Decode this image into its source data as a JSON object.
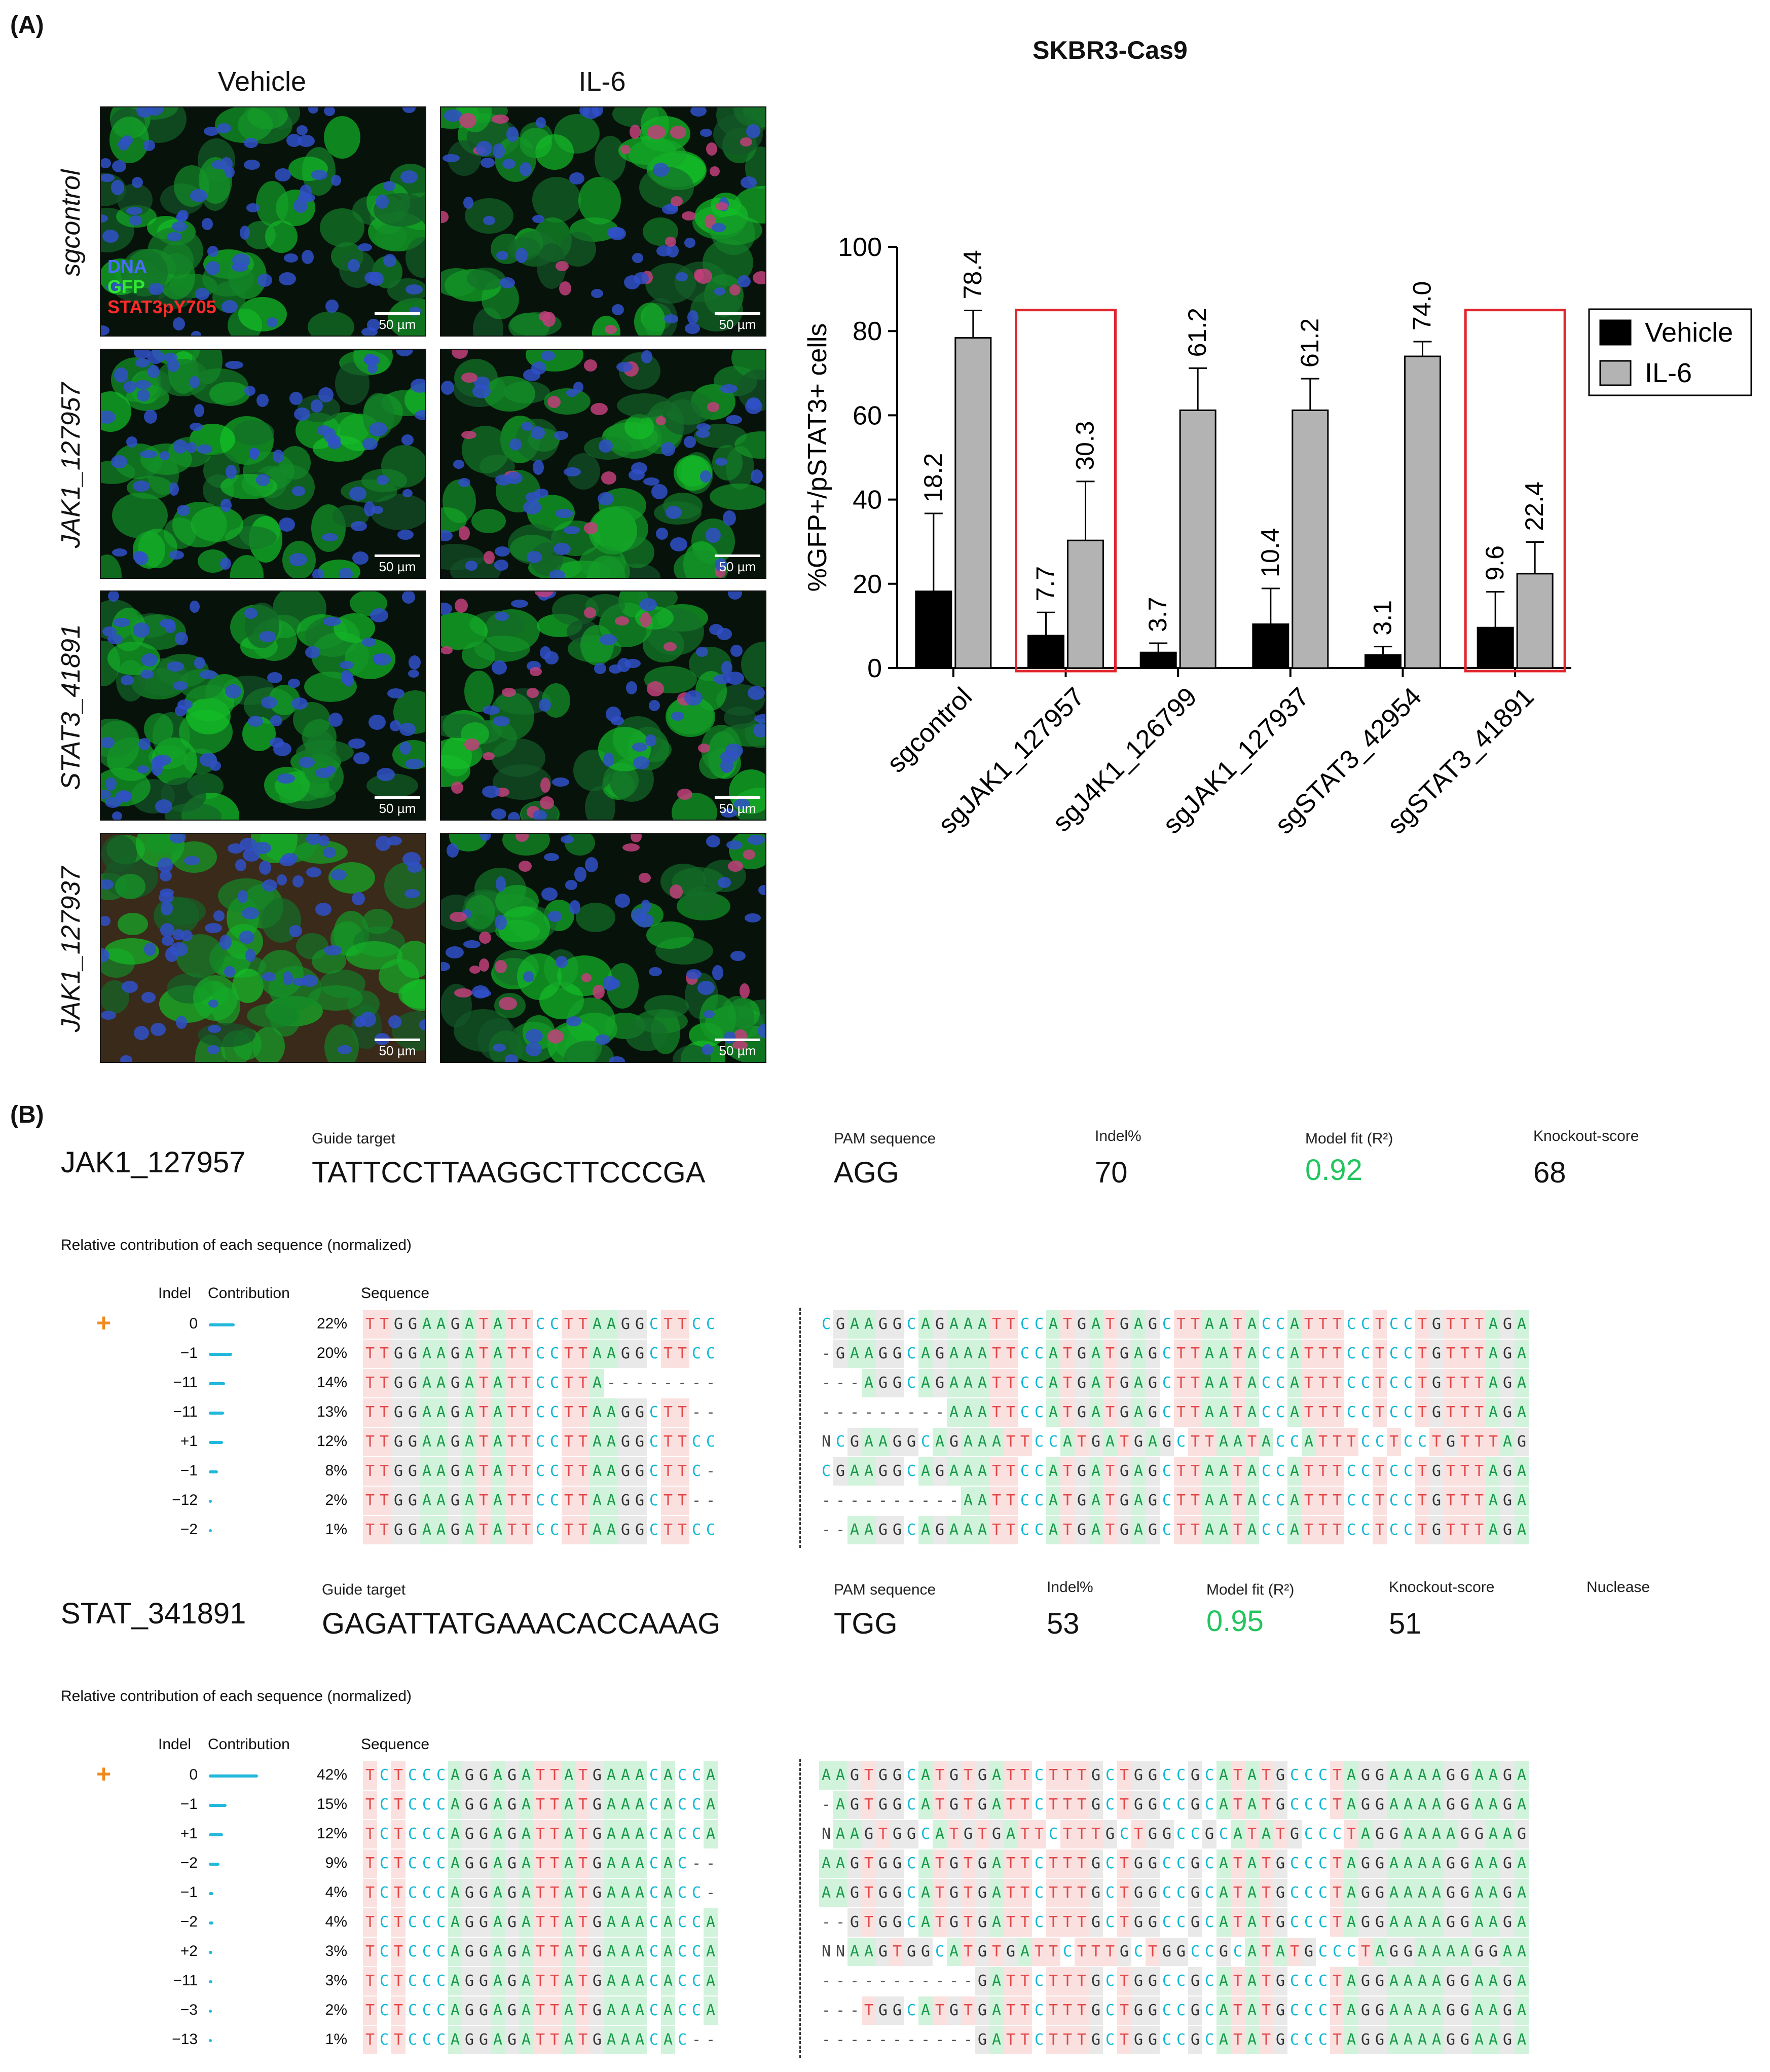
{
  "panel_a": {
    "label": "(A)",
    "col_headers": [
      "Vehicle",
      "IL-6"
    ],
    "row_labels": [
      "sgcontrol",
      "JAK1_127957",
      "STAT3_41891",
      "JAK1_127937"
    ],
    "legend": {
      "dna": "DNA",
      "gfp": "GFP",
      "stat": "STAT3pY705"
    },
    "scale_label": "50 µm"
  },
  "chart_data": {
    "type": "bar",
    "title": "SKBR3-Cas9",
    "ylabel": "%GFP+/pSTAT3+ cells",
    "xlabel": "",
    "ylim": [
      0,
      100
    ],
    "yticks": [
      "0",
      "20",
      "40",
      "60",
      "80",
      "100"
    ],
    "categories": [
      "sgcontrol",
      "sgJAK1_127957",
      "sgJ4K1_126799",
      "sgJAK1_127937",
      "sgSTAT3_42954",
      "sgSTAT3_41891"
    ],
    "series": [
      {
        "name": "Vehicle",
        "color": "#000000",
        "values": [
          18.2,
          7.7,
          3.7,
          10.4,
          3.1,
          9.6
        ],
        "errors": [
          18.5,
          5.5,
          2.2,
          8.5,
          2.0,
          8.5
        ],
        "labels": [
          "18.2",
          "7.7",
          "3.7",
          "10.4",
          "3.1",
          "9.6"
        ]
      },
      {
        "name": "IL-6",
        "color": "#b3b3b3",
        "values": [
          78.4,
          30.3,
          61.2,
          61.2,
          74.0,
          22.4
        ],
        "errors": [
          6.5,
          14.0,
          10.0,
          7.5,
          3.5,
          7.5
        ],
        "labels": [
          "78.4",
          "30.3",
          "61.2",
          "61.2",
          "74.0",
          "22.4"
        ]
      }
    ],
    "highlight_categories": [
      1,
      5
    ],
    "legend_position": "top-right"
  },
  "panel_b": {
    "label": "(B)",
    "blocks": [
      {
        "name": "JAK1_127957",
        "guide_label": "Guide target",
        "guide": "TATTCCTTAAGGCTTCCCGA",
        "pam_label": "PAM sequence",
        "pam": "AGG",
        "indel_label": "Indel%",
        "indel": "70",
        "fit_label": "Model fit (R²)",
        "fit": "0.92",
        "ko_label": "Knockout-score",
        "ko": "68",
        "nuclease_label": "",
        "rel_label": "Relative contribution of each sequence (normalized)",
        "col_indel": "Indel",
        "col_contrib": "Contribution",
        "col_seq": "Sequence",
        "rows": [
          {
            "indel": "0",
            "pct": "22%",
            "frac": 0.22,
            "left": "TTGGAAGATATTCCTTAAGGCTTCC",
            "right": "CGAAGGCAGAAATTCCATGATGAGCTTAATACCATTTCCTCCTGTTTAGA",
            "wt": true
          },
          {
            "indel": "−1",
            "pct": "20%",
            "frac": 0.2,
            "left": "TTGGAAGATATTCCTTAAGGCTTCC",
            "right": "-GAAGGCAGAAATTCCATGATGAGCTTAATACCATTTCCTCCTGTTTAGA"
          },
          {
            "indel": "−11",
            "pct": "14%",
            "frac": 0.14,
            "left": "TTGGAAGATATTCCTTA--------",
            "right": "---AGGCAGAAATTCCATGATGAGCTTAATACCATTTCCTCCTGTTTAGA"
          },
          {
            "indel": "−11",
            "pct": "13%",
            "frac": 0.13,
            "left": "TTGGAAGATATTCCTTAAGGCTT--",
            "right": "---------AAATTCCATGATGAGCTTAATACCATTTCCTCCTGTTTAGA"
          },
          {
            "indel": "+1",
            "pct": "12%",
            "frac": 0.12,
            "left": "TTGGAAGATATTCCTTAAGGCTTCC",
            "right": "NCGAAGGCAGAAATTCCATGATGAGCTTAATACCATTTCCTCCTGTTTAG"
          },
          {
            "indel": "−1",
            "pct": "8%",
            "frac": 0.08,
            "left": "TTGGAAGATATTCCTTAAGGCTTC-",
            "right": "CGAAGGCAGAAATTCCATGATGAGCTTAATACCATTTCCTCCTGTTTAGA"
          },
          {
            "indel": "−12",
            "pct": "2%",
            "frac": 0.02,
            "left": "TTGGAAGATATTCCTTAAGGCTT--",
            "right": "----------AATTCCATGATGAGCTTAATACCATTTCCTCCTGTTTAGA"
          },
          {
            "indel": "−2",
            "pct": "1%",
            "frac": 0.01,
            "left": "TTGGAAGATATTCCTTAAGGCTTCC",
            "right": "--AAGGCAGAAATTCCATGATGAGCTTAATACCATTTCCTCCTGTTTAGA"
          }
        ]
      },
      {
        "name": "STAT_341891",
        "guide_label": "Guide target",
        "guide": "GAGATTATGAAACACCAAAG",
        "pam_label": "PAM sequence",
        "pam": "TGG",
        "indel_label": "Indel%",
        "indel": "53",
        "fit_label": "Model fit (R²)",
        "fit": "0.95",
        "ko_label": "Knockout-score",
        "ko": "51",
        "nuclease_label": "Nuclease",
        "rel_label": "Relative contribution of each sequence (normalized)",
        "col_indel": "Indel",
        "col_contrib": "Contribution",
        "col_seq": "Sequence",
        "rows": [
          {
            "indel": "0",
            "pct": "42%",
            "frac": 0.42,
            "left": "TCTCCCAGGAGATTATGAAACACCA",
            "right": "AAGTGGCATGTGATTCTTTGCTGGCCGCATATGCCCTAGGAAAAGGAAGA",
            "wt": true
          },
          {
            "indel": "−1",
            "pct": "15%",
            "frac": 0.15,
            "left": "TCTCCCAGGAGATTATGAAACACCA",
            "right": "-AGTGGCATGTGATTCTTTGCTGGCCGCATATGCCCTAGGAAAAGGAAGA"
          },
          {
            "indel": "+1",
            "pct": "12%",
            "frac": 0.12,
            "left": "TCTCCCAGGAGATTATGAAACACCA",
            "right": "NAAGTGGCATGTGATTCTTTGCTGGCCGCATATGCCCTAGGAAAAGGAAG"
          },
          {
            "indel": "−2",
            "pct": "9%",
            "frac": 0.09,
            "left": "TCTCCCAGGAGATTATGAAACAC--",
            "right": "AAGTGGCATGTGATTCTTTGCTGGCCGCATATGCCCTAGGAAAAGGAAGA"
          },
          {
            "indel": "−1",
            "pct": "4%",
            "frac": 0.04,
            "left": "TCTCCCAGGAGATTATGAAACACC-",
            "right": "AAGTGGCATGTGATTCTTTGCTGGCCGCATATGCCCTAGGAAAAGGAAGA"
          },
          {
            "indel": "−2",
            "pct": "4%",
            "frac": 0.04,
            "left": "TCTCCCAGGAGATTATGAAACACCA",
            "right": "--GTGGCATGTGATTCTTTGCTGGCCGCATATGCCCTAGGAAAAGGAAGA"
          },
          {
            "indel": "+2",
            "pct": "3%",
            "frac": 0.03,
            "left": "TCTCCCAGGAGATTATGAAACACCA",
            "right": "NNAAGTGGCATGTGATTCTTTGCTGGCCGCATATGCCCTAGGAAAAGGAA"
          },
          {
            "indel": "−11",
            "pct": "3%",
            "frac": 0.03,
            "left": "TCTCCCAGGAGATTATGAAACACCA",
            "right": "-----------GATTCTTTGCTGGCCGCATATGCCCTAGGAAAAGGAAGA"
          },
          {
            "indel": "−3",
            "pct": "2%",
            "frac": 0.02,
            "left": "TCTCCCAGGAGATTATGAAACACCA",
            "right": "---TGGCATGTGATTCTTTGCTGGCCGCATATGCCCTAGGAAAAGGAAGA"
          },
          {
            "indel": "−13",
            "pct": "1%",
            "frac": 0.01,
            "left": "TCTCCCAGGAGATTATGAAACAC--",
            "right": "-----------GATTCTTTGCTGGCCGCATATGCCCTAGGAAAAGGAAGA"
          }
        ]
      }
    ]
  },
  "colors": {
    "green_value": "#22c55e",
    "wt_marker": "#f08a1c",
    "highlight_box": "#e0262e",
    "vehicle": "#000000",
    "il6": "#b3b3b3"
  }
}
